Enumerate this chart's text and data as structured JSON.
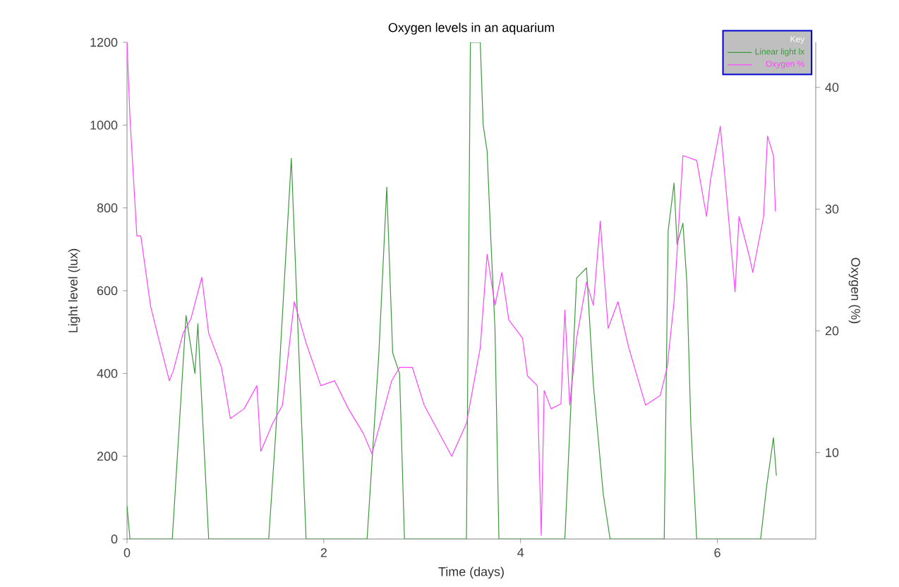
{
  "chart_data": {
    "type": "line",
    "title": "Oxygen levels in an aquarium",
    "xlabel": "Time (days)",
    "ylabel": "Light level (lux)",
    "y2label": "Oxygen (%)",
    "legend_title": "Key",
    "legend": "top right",
    "grid": false,
    "xlim": [
      0,
      7.0
    ],
    "xticks": [
      0,
      2,
      4,
      6
    ],
    "ylim": [
      0,
      1200
    ],
    "yticks": [
      0,
      200,
      400,
      600,
      800,
      1000,
      1200
    ],
    "y2lim": [
      2.9,
      43.7
    ],
    "y2ticks": [
      10,
      20,
      30,
      40
    ],
    "series": [
      {
        "name": "Linear light lx",
        "color": "#3c9a3c",
        "x": [
          0,
          0.03,
          0.46,
          0.6,
          0.69,
          0.72,
          0.83,
          1.44,
          1.51,
          1.67,
          1.82,
          2.44,
          2.56,
          2.64,
          2.7,
          2.77,
          2.82,
          3.45,
          3.49,
          3.59,
          3.62,
          3.66,
          3.7,
          3.74,
          3.78,
          4.45,
          4.57,
          4.67,
          4.74,
          4.84,
          4.91,
          5.46,
          5.5,
          5.56,
          5.59,
          5.65,
          5.69,
          5.73,
          5.79,
          6.44,
          6.5,
          6.57,
          6.6
        ],
        "values": [
          80,
          0,
          0,
          540,
          400,
          520,
          0,
          0,
          250,
          920,
          0,
          0,
          450,
          850,
          450,
          400,
          0,
          0,
          1200,
          1200,
          1000,
          937,
          712,
          507,
          0,
          0,
          631,
          655,
          372,
          109,
          0,
          0,
          745,
          860,
          712,
          763,
          620,
          280,
          0,
          0,
          126,
          245,
          153
        ]
      },
      {
        "name": "Oxygen %",
        "color": "#ff44ff",
        "axis": "y2",
        "x": [
          0,
          0.03,
          0.1,
          0.14,
          0.24,
          0.32,
          0.43,
          0.47,
          0.57,
          0.65,
          0.76,
          0.83,
          0.96,
          1.05,
          1.19,
          1.32,
          1.36,
          1.48,
          1.58,
          1.7,
          1.82,
          1.97,
          2.11,
          2.25,
          2.4,
          2.49,
          2.69,
          2.77,
          2.9,
          3.02,
          3.3,
          3.45,
          3.59,
          3.66,
          3.74,
          3.81,
          3.88,
          4.02,
          4.07,
          4.17,
          4.21,
          4.24,
          4.31,
          4.41,
          4.45,
          4.5,
          4.57,
          4.67,
          4.74,
          4.81,
          4.89,
          4.99,
          5.1,
          5.27,
          5.42,
          5.49,
          5.56,
          5.65,
          5.79,
          5.89,
          5.93,
          6.03,
          6.08,
          6.18,
          6.22,
          6.32,
          6.36,
          6.47,
          6.51,
          6.57,
          6.59
        ],
        "values": [
          43.7,
          37.5,
          27.8,
          27.8,
          22,
          19.4,
          15.9,
          16.7,
          19.8,
          21,
          24.4,
          19.8,
          17,
          12.8,
          13.6,
          15.5,
          10.1,
          12.4,
          13.9,
          22.4,
          19,
          15.5,
          15.9,
          13.6,
          11.6,
          9.9,
          15.9,
          17,
          17,
          13.9,
          9.7,
          12.4,
          18.6,
          26.3,
          22.1,
          24.8,
          20.9,
          19.4,
          16.3,
          15.5,
          3.2,
          15.1,
          13.6,
          14,
          21.7,
          13.9,
          19.4,
          24,
          22.1,
          29,
          20.2,
          22.4,
          18.6,
          13.9,
          14.7,
          17,
          22.4,
          34.4,
          34,
          29.4,
          32.4,
          36.8,
          32.4,
          23.2,
          29.4,
          26.3,
          24.8,
          29.4,
          36,
          34.4,
          29.8
        ]
      }
    ]
  }
}
